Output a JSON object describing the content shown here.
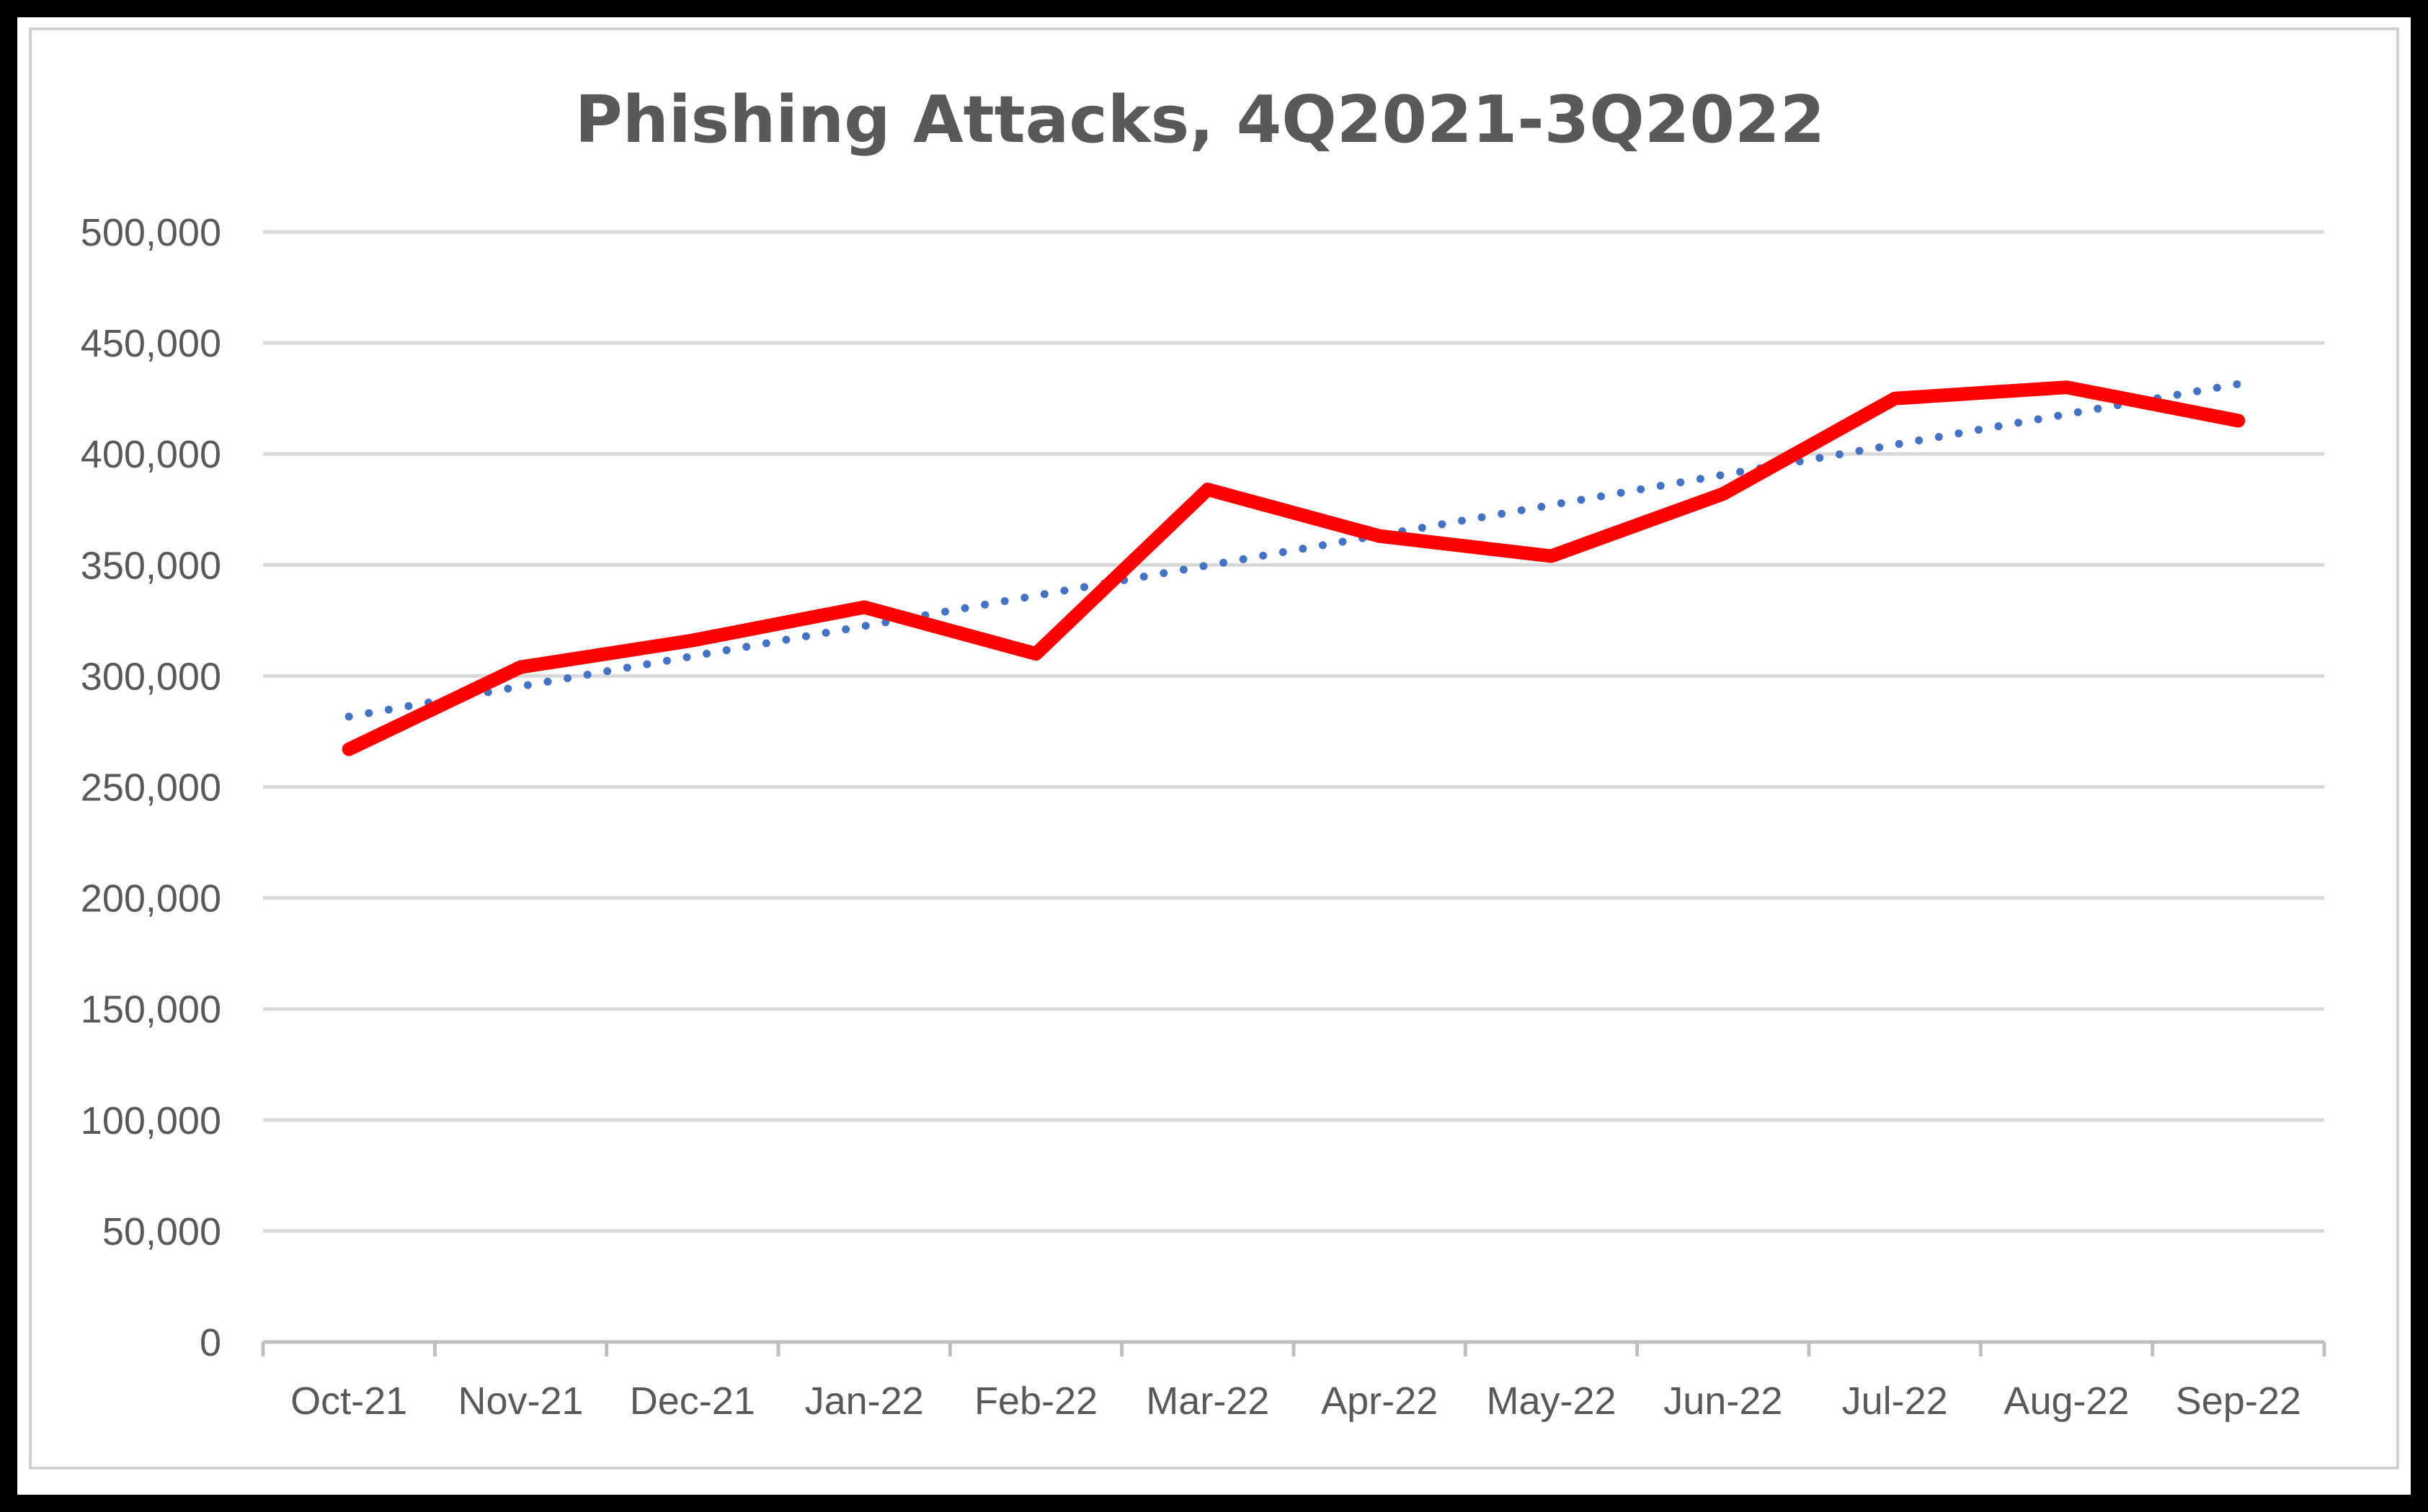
{
  "chart_data": {
    "type": "line",
    "title": "Phishing Attacks, 4Q2021-3Q2022",
    "xlabel": "",
    "ylabel": "",
    "categories": [
      "Oct-21",
      "Nov-21",
      "Dec-21",
      "Jan-22",
      "Feb-22",
      "Mar-22",
      "Apr-22",
      "May-22",
      "Jun-22",
      "Jul-22",
      "Aug-22",
      "Sep-22"
    ],
    "ylim": [
      0,
      500000
    ],
    "yticks": [
      0,
      50000,
      100000,
      150000,
      200000,
      250000,
      300000,
      350000,
      400000,
      450000,
      500000
    ],
    "ytick_labels": [
      "0",
      "50,000",
      "100,000",
      "150,000",
      "200,000",
      "250,000",
      "300,000",
      "350,000",
      "400,000",
      "450,000",
      "500,000"
    ],
    "grid": true,
    "legend": "none",
    "series": [
      {
        "values": [
          267000,
          304000,
          316000,
          331000,
          310000,
          384000,
          363000,
          354000,
          382000,
          425000,
          430000,
          415000
        ],
        "color": "#ff0000",
        "style": "solid"
      },
      {
        "values": [
          281700,
          295300,
          308900,
          322500,
          336200,
          349800,
          363400,
          377000,
          390600,
          404200,
          417900,
          431500
        ],
        "color": "#4472c4",
        "style": "dotted"
      }
    ]
  }
}
